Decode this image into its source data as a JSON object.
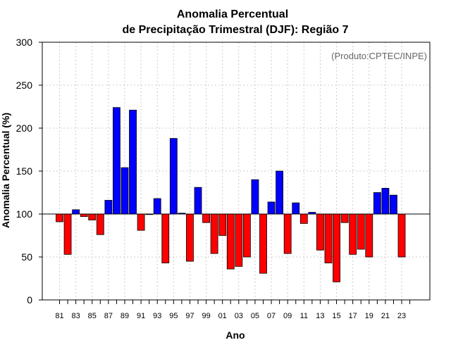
{
  "chart_data": {
    "type": "bar",
    "title_line1": "Anomalia Percentual",
    "title_line2": "de Precipitação Trimestral (DJF): Região 7",
    "xlabel": "Ano",
    "ylabel": "Anomalia Percentual (%)",
    "credit": "(Produto:CPTEC/INPE)",
    "ylim": [
      0,
      300
    ],
    "yticks": [
      0,
      50,
      100,
      150,
      200,
      250,
      300
    ],
    "baseline": 100,
    "grid": true,
    "colors": {
      "above": "#0000ff",
      "below": "#ff0000",
      "edge": "#000000",
      "grid": "#cccccc"
    },
    "categories": [
      "81",
      "82",
      "83",
      "84",
      "85",
      "86",
      "87",
      "88",
      "89",
      "90",
      "91",
      "92",
      "93",
      "94",
      "95",
      "96",
      "97",
      "98",
      "99",
      "00",
      "01",
      "02",
      "03",
      "04",
      "05",
      "06",
      "07",
      "08",
      "09",
      "10",
      "11",
      "12",
      "13",
      "14",
      "15",
      "16",
      "17",
      "18",
      "19",
      "20",
      "21",
      "22",
      "23"
    ],
    "values": [
      91,
      53,
      105,
      97,
      93,
      76,
      116,
      224,
      154,
      221,
      81,
      100,
      118,
      43,
      188,
      101,
      45,
      131,
      90,
      54,
      75,
      36,
      39,
      50,
      140,
      31,
      114,
      150,
      54,
      113,
      89,
      102,
      58,
      43,
      21,
      90,
      53,
      59,
      50,
      125,
      130,
      122,
      50
    ],
    "xtick_labels": [
      "81",
      "83",
      "85",
      "87",
      "89",
      "91",
      "93",
      "95",
      "97",
      "99",
      "01",
      "03",
      "05",
      "07",
      "09",
      "11",
      "13",
      "15",
      "17",
      "19",
      "21",
      "23"
    ]
  }
}
